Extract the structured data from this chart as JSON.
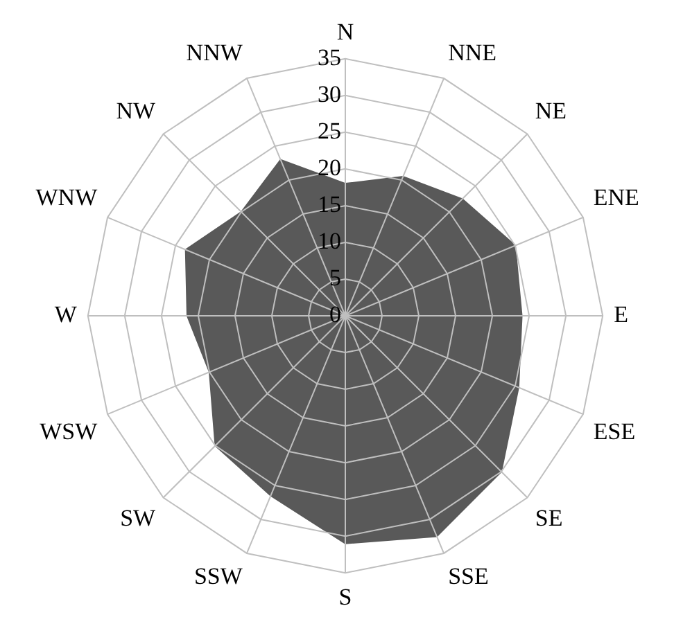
{
  "chart_data": {
    "type": "radar",
    "categories": [
      "N",
      "NNE",
      "NE",
      "ENE",
      "E",
      "ESE",
      "SE",
      "SSE",
      "S",
      "SSW",
      "SW",
      "WSW",
      "W",
      "WNW",
      "NW",
      "NNW"
    ],
    "series": [
      {
        "color": "#595959",
        "values": [
          18,
          20.5,
          22.5,
          25,
          24,
          25.5,
          30,
          32.5,
          31,
          26.5,
          25,
          20,
          21.5,
          23.5,
          20,
          23
        ]
      }
    ],
    "ylim": [
      0,
      35
    ],
    "yticks": [
      0,
      5,
      10,
      15,
      20,
      25,
      30,
      35
    ],
    "grid": true,
    "legend": false
  }
}
